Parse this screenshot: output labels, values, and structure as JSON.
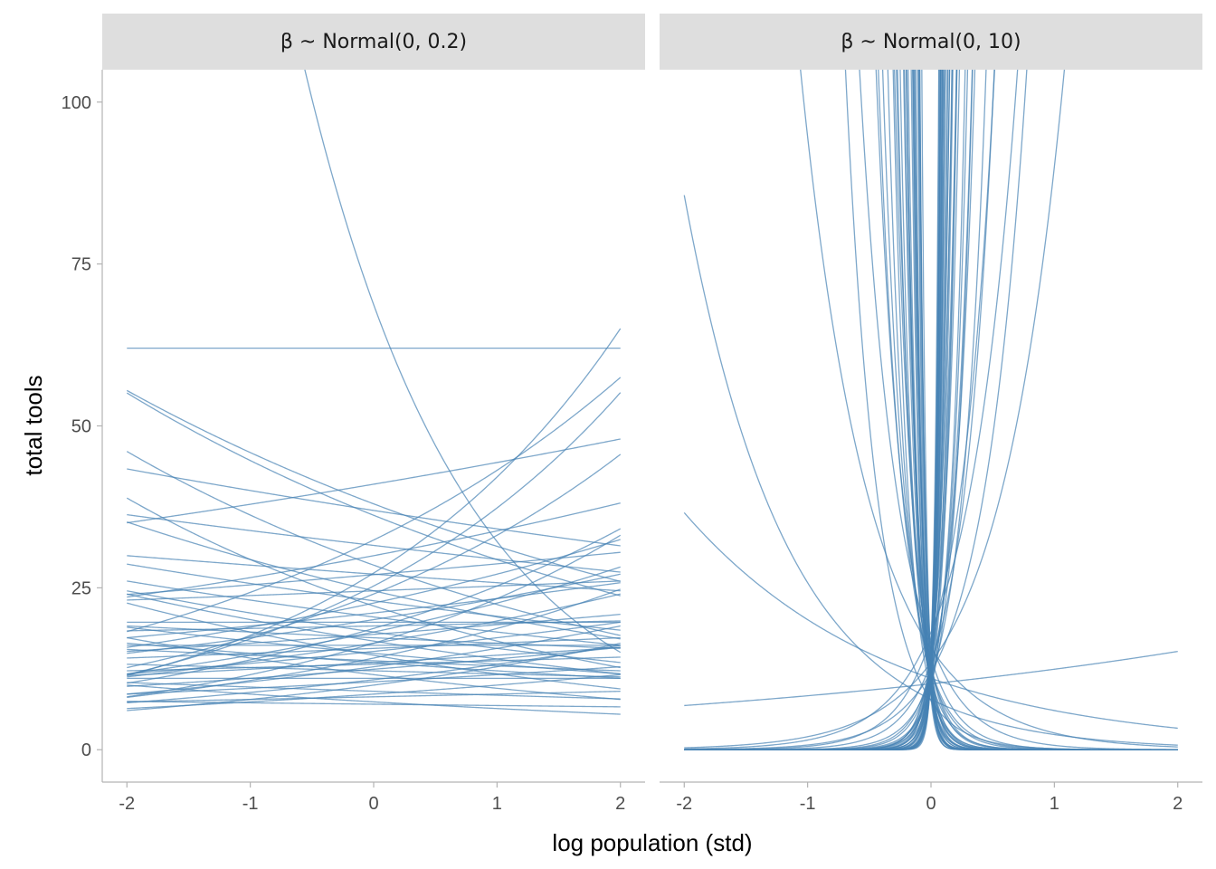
{
  "chart_data": {
    "type": "line",
    "xlabel": "log population (std)",
    "ylabel": "total tools",
    "xlim": [
      -2.2,
      2.2
    ],
    "ylim": [
      -5,
      105
    ],
    "x_ticks": [
      -2,
      -1,
      0,
      1,
      2
    ],
    "x_tick_labels": [
      "-2",
      "-1",
      "0",
      "1",
      "2"
    ],
    "y_ticks": [
      0,
      25,
      50,
      75,
      100
    ],
    "y_tick_labels": [
      "0",
      "25",
      "50",
      "75",
      "100"
    ],
    "grid": false,
    "line_color": "#4682b4",
    "strip_color": "#dedede",
    "curve_model": "y = exp(a + b * x)",
    "panels": [
      {
        "title": "β ~ Normal(0, 0.2)",
        "curves": [
          {
            "a": 4.1271,
            "b": 0.0
          },
          {
            "a": 4.23,
            "b": -0.76
          },
          {
            "a": 3.306,
            "b": 0.4344
          },
          {
            "a": 3.6366,
            "b": -0.1896
          },
          {
            "a": 3.589,
            "b": -0.21
          },
          {
            "a": 3.4776,
            "b": 0.287
          },
          {
            "a": 3.7135,
            "b": 0.0786
          },
          {
            "a": 3.6095,
            "b": -0.08
          },
          {
            "a": 3.4515,
            "b": -0.07
          },
          {
            "a": 3.23,
            "b": 0.39
          },
          {
            "a": 3.18,
            "b": 0.32
          },
          {
            "a": 2.8,
            "b": 0.19
          },
          {
            "a": 3.35,
            "b": -0.24
          },
          {
            "a": 3.297,
            "b": 0.06
          },
          {
            "a": 3.1355,
            "b": -0.11
          },
          {
            "a": 3.4,
            "b": 0.12
          },
          {
            "a": 3.2,
            "b": 0.03
          },
          {
            "a": 2.9,
            "b": -0.15
          },
          {
            "a": 3.05,
            "b": 0.1
          },
          {
            "a": 2.95,
            "b": 0.02
          },
          {
            "a": 2.85,
            "b": -0.05
          },
          {
            "a": 3.0,
            "b": 0.15
          },
          {
            "a": 2.65,
            "b": 0.28
          },
          {
            "a": 2.7,
            "b": -0.12
          },
          {
            "a": 2.75,
            "b": 0.05
          },
          {
            "a": 2.6,
            "b": 0.08
          },
          {
            "a": 2.5,
            "b": -0.04
          },
          {
            "a": 2.55,
            "b": 0.2
          },
          {
            "a": 2.45,
            "b": -0.2
          },
          {
            "a": 2.4,
            "b": 0.0
          },
          {
            "a": 2.35,
            "b": 0.1
          },
          {
            "a": 2.2,
            "b": -0.07
          },
          {
            "a": 2.3,
            "b": 0.25
          },
          {
            "a": 2.15,
            "b": 0.15
          },
          {
            "a": 2.0,
            "b": -0.15
          },
          {
            "a": 2.1,
            "b": 0.05
          },
          {
            "a": 1.95,
            "b": -0.03
          },
          {
            "a": 2.8,
            "b": 0.35
          },
          {
            "a": 3.1,
            "b": -0.28
          },
          {
            "a": 2.9,
            "b": 0.22
          },
          {
            "a": 3.3,
            "b": -0.05
          },
          {
            "a": 2.6,
            "b": -0.1
          },
          {
            "a": 2.72,
            "b": 0.13
          },
          {
            "a": 2.82,
            "b": -0.18
          },
          {
            "a": 2.93,
            "b": 0.3
          },
          {
            "a": 2.78,
            "b": 0.0
          },
          {
            "a": 2.52,
            "b": 0.12
          },
          {
            "a": 2.62,
            "b": -0.06
          },
          {
            "a": 3.02,
            "b": -0.12
          },
          {
            "a": 2.38,
            "b": 0.2
          },
          {
            "a": 2.88,
            "b": 0.08
          },
          {
            "a": 2.68,
            "b": -0.22
          },
          {
            "a": 2.58,
            "b": 0.04
          },
          {
            "a": 3.12,
            "b": 0.18
          },
          {
            "a": 3.2,
            "b": -0.18
          },
          {
            "a": 2.98,
            "b": 0.0
          }
        ]
      },
      {
        "title": "β ~ Normal(0, 10)",
        "curves": [
          {
            "a": 2.9,
            "b": 2.5
          },
          {
            "a": 2.8,
            "b": -3.2
          },
          {
            "a": 2.6,
            "b": 4.0
          },
          {
            "a": 2.5,
            "b": -5.5
          },
          {
            "a": 2.3,
            "b": 7.0
          },
          {
            "a": 2.2,
            "b": -8.0
          },
          {
            "a": 2.55,
            "b": 10.0
          },
          {
            "a": 2.45,
            "b": -11.0
          },
          {
            "a": 2.35,
            "b": 13.0
          },
          {
            "a": 2.25,
            "b": -15.0
          },
          {
            "a": 2.7,
            "b": 17.0
          },
          {
            "a": 2.15,
            "b": -20.0
          },
          {
            "a": 2.4,
            "b": 22.0
          },
          {
            "a": 2.05,
            "b": -1.2
          },
          {
            "a": 2.75,
            "b": -1.8
          },
          {
            "a": 2.6,
            "b": 1.9
          },
          {
            "a": 2.32,
            "b": 0.2
          },
          {
            "a": 2.4,
            "b": -0.6
          },
          {
            "a": 2.48,
            "b": 2.8
          },
          {
            "a": 2.65,
            "b": -4.5
          },
          {
            "a": 2.52,
            "b": 6.0
          },
          {
            "a": 2.38,
            "b": -6.5
          },
          {
            "a": 2.58,
            "b": 9.0
          },
          {
            "a": 2.28,
            "b": -9.5
          },
          {
            "a": 2.62,
            "b": 12.0
          },
          {
            "a": 2.18,
            "b": -12.5
          },
          {
            "a": 2.68,
            "b": 15.0
          },
          {
            "a": 2.12,
            "b": -17.0
          },
          {
            "a": 2.72,
            "b": 19.0
          },
          {
            "a": 2.08,
            "b": -24.0
          },
          {
            "a": 2.78,
            "b": 25.0
          },
          {
            "a": 2.02,
            "b": -3.8
          },
          {
            "a": 2.85,
            "b": 3.5
          },
          {
            "a": 2.42,
            "b": 5.0
          },
          {
            "a": 2.55,
            "b": -7.5
          },
          {
            "a": 2.3,
            "b": 8.5
          },
          {
            "a": 2.5,
            "b": -10.0
          },
          {
            "a": 2.35,
            "b": 11.0
          },
          {
            "a": 2.6,
            "b": -14.0
          },
          {
            "a": 2.45,
            "b": 16.0
          },
          {
            "a": 2.2,
            "b": -18.0
          },
          {
            "a": 2.65,
            "b": 21.0
          },
          {
            "a": 2.4,
            "b": -22.0
          },
          {
            "a": 2.5,
            "b": 27.0
          },
          {
            "a": 2.3,
            "b": -26.0
          },
          {
            "a": 2.75,
            "b": 30.0
          },
          {
            "a": 2.55,
            "b": 14.0
          },
          {
            "a": 2.25,
            "b": -13.0
          },
          {
            "a": 2.7,
            "b": 9.5
          },
          {
            "a": 2.35,
            "b": -8.5
          },
          {
            "a": 2.58,
            "b": 18.0
          },
          {
            "a": 2.42,
            "b": -16.0
          },
          {
            "a": 2.62,
            "b": 23.0
          },
          {
            "a": 2.28,
            "b": -19.0
          },
          {
            "a": 2.48,
            "b": 6.5
          },
          {
            "a": 2.52,
            "b": -5.0
          },
          {
            "a": 2.68,
            "b": 11.5
          },
          {
            "a": 2.32,
            "b": -10.5
          },
          {
            "a": 2.44,
            "b": 28.0
          },
          {
            "a": 2.56,
            "b": -28.0
          },
          {
            "a": 2.36,
            "b": 20.0
          },
          {
            "a": 2.64,
            "b": -21.0
          },
          {
            "a": 2.46,
            "b": 24.0
          },
          {
            "a": 2.54,
            "b": -23.0
          },
          {
            "a": 2.66,
            "b": 26.0
          },
          {
            "a": 2.34,
            "b": 7.8
          },
          {
            "a": 2.58,
            "b": -7.0
          },
          {
            "a": 2.72,
            "b": 12.8
          },
          {
            "a": 2.26,
            "b": -12.0
          },
          {
            "a": 2.5,
            "b": 32.0
          }
        ]
      }
    ]
  }
}
